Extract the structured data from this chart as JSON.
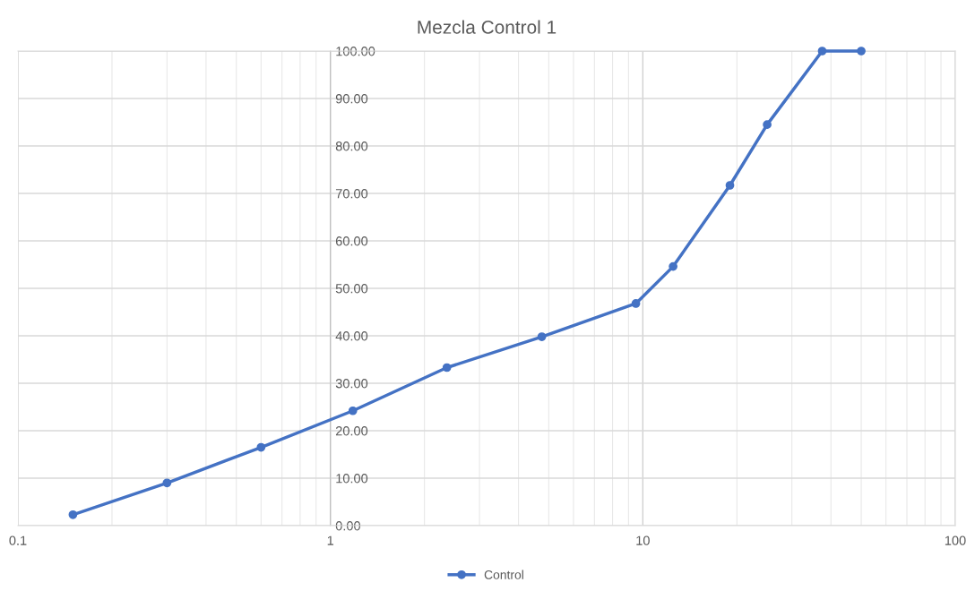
{
  "chart_data": {
    "type": "line",
    "title": "Mezcla Control 1",
    "log": "x",
    "x": [
      0.15,
      0.3,
      0.6,
      1.18,
      2.36,
      4.75,
      9.5,
      12.5,
      19,
      25,
      37.5,
      50
    ],
    "series": [
      {
        "name": "Control",
        "color": "#4472c4",
        "values": [
          2.3,
          9.0,
          16.5,
          24.2,
          33.3,
          39.8,
          46.8,
          54.6,
          71.7,
          84.5,
          100,
          100
        ]
      }
    ],
    "xlim": [
      0.1,
      100
    ],
    "xticks": [
      0.1,
      1,
      10,
      100
    ],
    "ylim": [
      0,
      100
    ],
    "yticks": [
      {
        "value": 0,
        "label": "0.00"
      },
      {
        "value": 10,
        "label": "10.00"
      },
      {
        "value": 20,
        "label": "20.00"
      },
      {
        "value": 30,
        "label": "30.00"
      },
      {
        "value": 40,
        "label": "40.00"
      },
      {
        "value": 50,
        "label": "50.00"
      },
      {
        "value": 60,
        "label": "60.00"
      },
      {
        "value": 70,
        "label": "70.00"
      },
      {
        "value": 80,
        "label": "80.00"
      },
      {
        "value": 90,
        "label": "90.00"
      },
      {
        "value": 100,
        "label": "100.00"
      }
    ],
    "grid": true,
    "legend": "bottom",
    "marker": "circle",
    "line_style": "solid"
  }
}
